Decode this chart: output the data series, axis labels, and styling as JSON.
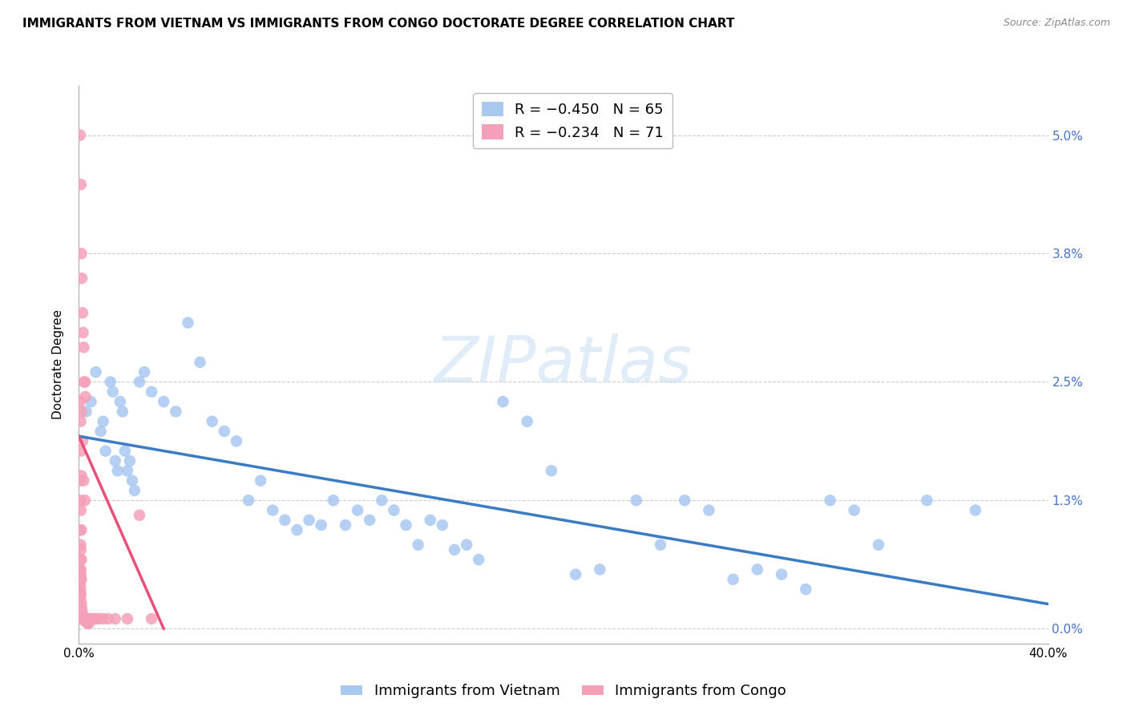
{
  "title": "IMMIGRANTS FROM VIETNAM VS IMMIGRANTS FROM CONGO DOCTORATE DEGREE CORRELATION CHART",
  "source": "Source: ZipAtlas.com",
  "ylabel": "Doctorate Degree",
  "ytick_values": [
    0.0,
    1.3,
    2.5,
    3.8,
    5.0
  ],
  "xlim": [
    0.0,
    40.0
  ],
  "ylim": [
    -0.15,
    5.5
  ],
  "watermark": "ZIPatlas",
  "vietnam_color": "#A8C8F0",
  "congo_color": "#F4A0B8",
  "vietnam_line_color": "#3A7CC4",
  "congo_line_color": "#E8507A",
  "vietnam_scatter": [
    [
      0.3,
      2.2
    ],
    [
      0.5,
      2.3
    ],
    [
      0.7,
      2.6
    ],
    [
      0.9,
      2.0
    ],
    [
      1.0,
      2.1
    ],
    [
      1.1,
      1.8
    ],
    [
      1.3,
      2.5
    ],
    [
      1.4,
      2.4
    ],
    [
      1.5,
      1.7
    ],
    [
      1.6,
      1.6
    ],
    [
      1.7,
      2.3
    ],
    [
      1.8,
      2.2
    ],
    [
      1.9,
      1.8
    ],
    [
      2.0,
      1.6
    ],
    [
      2.1,
      1.7
    ],
    [
      2.2,
      1.5
    ],
    [
      2.3,
      1.4
    ],
    [
      2.5,
      2.5
    ],
    [
      2.7,
      2.6
    ],
    [
      3.0,
      2.4
    ],
    [
      3.5,
      2.3
    ],
    [
      4.0,
      2.2
    ],
    [
      4.5,
      3.1
    ],
    [
      5.0,
      2.7
    ],
    [
      5.5,
      2.1
    ],
    [
      6.0,
      2.0
    ],
    [
      6.5,
      1.9
    ],
    [
      7.0,
      1.3
    ],
    [
      7.5,
      1.5
    ],
    [
      8.0,
      1.2
    ],
    [
      8.5,
      1.1
    ],
    [
      9.0,
      1.0
    ],
    [
      9.5,
      1.1
    ],
    [
      10.0,
      1.05
    ],
    [
      10.5,
      1.3
    ],
    [
      11.0,
      1.05
    ],
    [
      11.5,
      1.2
    ],
    [
      12.0,
      1.1
    ],
    [
      12.5,
      1.3
    ],
    [
      13.0,
      1.2
    ],
    [
      13.5,
      1.05
    ],
    [
      14.0,
      0.85
    ],
    [
      14.5,
      1.1
    ],
    [
      15.0,
      1.05
    ],
    [
      15.5,
      0.8
    ],
    [
      16.0,
      0.85
    ],
    [
      16.5,
      0.7
    ],
    [
      17.5,
      2.3
    ],
    [
      18.5,
      2.1
    ],
    [
      19.5,
      1.6
    ],
    [
      20.5,
      0.55
    ],
    [
      21.5,
      0.6
    ],
    [
      23.0,
      1.3
    ],
    [
      24.0,
      0.85
    ],
    [
      25.0,
      1.3
    ],
    [
      26.0,
      1.2
    ],
    [
      27.0,
      0.5
    ],
    [
      28.0,
      0.6
    ],
    [
      29.0,
      0.55
    ],
    [
      30.0,
      0.4
    ],
    [
      31.0,
      1.3
    ],
    [
      32.0,
      1.2
    ],
    [
      33.0,
      0.85
    ],
    [
      35.0,
      1.3
    ],
    [
      37.0,
      1.2
    ]
  ],
  "congo_scatter": [
    [
      0.05,
      5.0
    ],
    [
      0.08,
      4.5
    ],
    [
      0.1,
      3.8
    ],
    [
      0.12,
      3.55
    ],
    [
      0.15,
      3.2
    ],
    [
      0.17,
      3.0
    ],
    [
      0.2,
      2.85
    ],
    [
      0.22,
      2.5
    ],
    [
      0.25,
      2.5
    ],
    [
      0.27,
      2.35
    ],
    [
      0.1,
      2.2
    ],
    [
      0.15,
      1.9
    ],
    [
      0.2,
      1.5
    ],
    [
      0.25,
      1.3
    ],
    [
      0.05,
      2.3
    ],
    [
      0.07,
      2.1
    ],
    [
      0.08,
      1.8
    ],
    [
      0.1,
      1.55
    ],
    [
      0.05,
      1.5
    ],
    [
      0.07,
      1.3
    ],
    [
      0.08,
      1.2
    ],
    [
      0.1,
      1.0
    ],
    [
      0.05,
      1.0
    ],
    [
      0.07,
      0.85
    ],
    [
      0.08,
      0.8
    ],
    [
      0.1,
      0.7
    ],
    [
      0.05,
      0.7
    ],
    [
      0.07,
      0.6
    ],
    [
      0.08,
      0.55
    ],
    [
      0.1,
      0.5
    ],
    [
      0.05,
      0.45
    ],
    [
      0.07,
      0.4
    ],
    [
      0.05,
      0.35
    ],
    [
      0.07,
      0.3
    ],
    [
      0.05,
      0.25
    ],
    [
      0.08,
      0.2
    ],
    [
      0.05,
      0.15
    ],
    [
      0.07,
      0.1
    ],
    [
      0.1,
      0.15
    ],
    [
      0.12,
      0.1
    ],
    [
      0.15,
      0.1
    ],
    [
      0.2,
      0.1
    ],
    [
      0.25,
      0.1
    ],
    [
      0.3,
      0.1
    ],
    [
      0.35,
      0.1
    ],
    [
      0.4,
      0.1
    ],
    [
      0.5,
      0.1
    ],
    [
      0.6,
      0.1
    ],
    [
      0.7,
      0.1
    ],
    [
      0.8,
      0.1
    ],
    [
      1.0,
      0.1
    ],
    [
      1.2,
      0.1
    ],
    [
      1.5,
      0.1
    ],
    [
      2.0,
      0.1
    ],
    [
      2.5,
      1.15
    ],
    [
      3.0,
      0.1
    ],
    [
      0.05,
      0.6
    ],
    [
      0.07,
      0.5
    ],
    [
      0.08,
      0.35
    ],
    [
      0.1,
      0.25
    ],
    [
      0.12,
      0.2
    ],
    [
      0.15,
      0.15
    ],
    [
      0.18,
      0.12
    ],
    [
      0.2,
      0.1
    ],
    [
      0.25,
      0.08
    ],
    [
      0.3,
      0.07
    ],
    [
      0.35,
      0.06
    ],
    [
      0.4,
      0.05
    ]
  ],
  "vietnam_regression": {
    "x_start": 0.0,
    "y_start": 1.95,
    "x_end": 40.0,
    "y_end": 0.25
  },
  "congo_regression": {
    "x_start": 0.0,
    "y_start": 1.95,
    "x_end": 3.5,
    "y_end": 0.0
  },
  "grid_color": "#CCCCCC",
  "background_color": "#FFFFFF",
  "title_fontsize": 11,
  "axis_label_fontsize": 11,
  "tick_fontsize": 11,
  "legend_fontsize": 13
}
